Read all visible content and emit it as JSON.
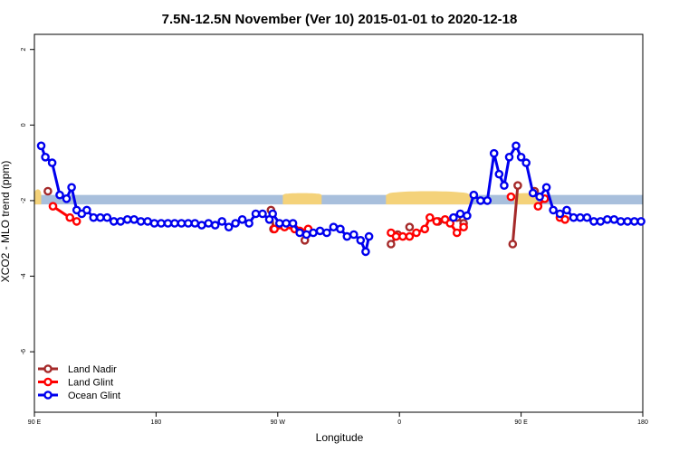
{
  "chart_data": {
    "type": "line",
    "title": "7.5N-12.5N November (Ver 10)   2015-01-01 to 2020-12-18",
    "xlabel": "Longitude",
    "ylabel": "XCO2 - MLO trend (ppm)",
    "xlim": [
      90,
      450
    ],
    "ylim": [
      -7.6,
      2.4
    ],
    "x_ticks": [
      {
        "value": 90,
        "label": "90 E"
      },
      {
        "value": 162,
        "label": "180"
      },
      {
        "value": 234,
        "label": "90 W"
      },
      {
        "value": 306,
        "label": "0"
      },
      {
        "value": 378,
        "label": "90 E"
      },
      {
        "value": 450,
        "label": "180"
      }
    ],
    "y_ticks": [
      {
        "value": 2,
        "label": "2"
      },
      {
        "value": 0,
        "label": "0"
      },
      {
        "value": -2,
        "label": "-2"
      },
      {
        "value": -4,
        "label": "-4"
      },
      {
        "value": -6,
        "label": "-6"
      }
    ],
    "colors": {
      "land_nadir": "#a52a2a",
      "land_glint": "#ff0000",
      "ocean_glint": "#0000ee",
      "surface_band": "#a8bfdc",
      "land_band": "#f4d27a"
    },
    "surface_band": {
      "y_top": -1.85,
      "y_bottom": -2.1
    },
    "land_regions": [
      {
        "x_start": 90,
        "x_end": 94,
        "peak": -1.7
      },
      {
        "x_start": 237,
        "x_end": 260,
        "peak": -1.8
      },
      {
        "x_start": 298,
        "x_end": 348,
        "peak": -1.75
      },
      {
        "x_start": 374,
        "x_end": 388,
        "peak": -1.8
      }
    ],
    "legend": [
      "Land Nadir",
      "Land Glint",
      "Ocean Glint"
    ],
    "legend_position": "bottom-left",
    "series": [
      {
        "name": "Land Nadir",
        "color_key": "land_nadir",
        "segments": [
          [
            [
              98,
              -1.75
            ]
          ],
          [
            [
              230,
              -2.25
            ],
            [
              231.5,
              -2.75
            ]
          ],
          [
            [
              250,
              -3.05
            ]
          ],
          [
            [
              301,
              -3.15
            ],
            [
              305,
              -2.9
            ]
          ],
          [
            [
              312,
              -2.7
            ]
          ],
          [
            [
              329,
              -2.55
            ]
          ],
          [
            [
              340,
              -2.45
            ],
            [
              344,
              -2.6
            ]
          ],
          [
            [
              373,
              -3.15
            ],
            [
              376,
              -1.6
            ]
          ],
          [
            [
              386,
              -1.75
            ]
          ]
        ]
      },
      {
        "name": "Land Glint",
        "color_key": "land_glint",
        "segments": [
          [
            [
              101,
              -2.15
            ],
            [
              111,
              -2.45
            ],
            [
              115,
              -2.55
            ]
          ],
          [
            [
              232,
              -2.75
            ],
            [
              238,
              -2.7
            ],
            [
              244,
              -2.75
            ],
            [
              247,
              -2.8
            ],
            [
              252,
              -2.75
            ]
          ],
          [
            [
              301,
              -2.85
            ],
            [
              304,
              -2.95
            ],
            [
              308,
              -2.95
            ],
            [
              312,
              -2.95
            ],
            [
              316,
              -2.85
            ],
            [
              321,
              -2.75
            ],
            [
              324,
              -2.45
            ],
            [
              328,
              -2.55
            ],
            [
              333,
              -2.5
            ],
            [
              336,
              -2.6
            ],
            [
              340,
              -2.85
            ],
            [
              344,
              -2.7
            ]
          ],
          [
            [
              372,
              -1.9
            ]
          ],
          [
            [
              388,
              -2.15
            ],
            [
              392,
              -1.95
            ]
          ],
          [
            [
              401,
              -2.45
            ],
            [
              404,
              -2.5
            ]
          ]
        ]
      },
      {
        "name": "Ocean Glint",
        "color_key": "ocean_glint",
        "segments": [
          [
            [
              94,
              -0.55
            ],
            [
              96.5,
              -0.85
            ],
            [
              100.5,
              -1.0
            ],
            [
              105,
              -1.85
            ],
            [
              109,
              -1.95
            ],
            [
              112,
              -1.65
            ],
            [
              115,
              -2.25
            ],
            [
              118,
              -2.35
            ],
            [
              121,
              -2.25
            ],
            [
              125,
              -2.45
            ],
            [
              129,
              -2.45
            ],
            [
              133,
              -2.45
            ],
            [
              137,
              -2.55
            ],
            [
              141,
              -2.55
            ],
            [
              145,
              -2.5
            ],
            [
              149,
              -2.5
            ],
            [
              153,
              -2.55
            ],
            [
              157,
              -2.55
            ],
            [
              161,
              -2.6
            ],
            [
              165,
              -2.6
            ],
            [
              169,
              -2.6
            ],
            [
              173,
              -2.6
            ],
            [
              177,
              -2.6
            ],
            [
              181,
              -2.6
            ],
            [
              185,
              -2.6
            ],
            [
              189,
              -2.65
            ],
            [
              193,
              -2.6
            ],
            [
              197,
              -2.65
            ],
            [
              201,
              -2.55
            ],
            [
              205,
              -2.7
            ],
            [
              209,
              -2.6
            ],
            [
              213,
              -2.5
            ],
            [
              217,
              -2.6
            ],
            [
              221,
              -2.35
            ],
            [
              225,
              -2.35
            ],
            [
              229,
              -2.5
            ],
            [
              231,
              -2.35
            ],
            [
              235,
              -2.6
            ],
            [
              239,
              -2.6
            ],
            [
              243,
              -2.6
            ],
            [
              247,
              -2.85
            ],
            [
              251,
              -2.9
            ],
            [
              255,
              -2.85
            ],
            [
              259,
              -2.8
            ],
            [
              263,
              -2.85
            ],
            [
              267,
              -2.7
            ],
            [
              271,
              -2.75
            ],
            [
              275,
              -2.95
            ],
            [
              279,
              -2.9
            ],
            [
              283,
              -3.05
            ],
            [
              286,
              -3.35
            ],
            [
              288,
              -2.95
            ]
          ],
          [
            [
              338,
              -2.45
            ],
            [
              342,
              -2.35
            ],
            [
              346,
              -2.4
            ],
            [
              350,
              -1.85
            ],
            [
              354,
              -2.0
            ],
            [
              358,
              -2.0
            ],
            [
              362,
              -0.75
            ],
            [
              365,
              -1.3
            ],
            [
              368,
              -1.6
            ],
            [
              371,
              -0.85
            ],
            [
              375,
              -0.55
            ],
            [
              378,
              -0.85
            ],
            [
              381,
              -1.0
            ],
            [
              385,
              -1.8
            ],
            [
              389,
              -1.9
            ],
            [
              393,
              -1.65
            ],
            [
              397,
              -2.25
            ],
            [
              401,
              -2.35
            ],
            [
              405,
              -2.25
            ],
            [
              409,
              -2.45
            ],
            [
              413,
              -2.45
            ],
            [
              417,
              -2.45
            ],
            [
              421,
              -2.55
            ],
            [
              425,
              -2.55
            ],
            [
              429,
              -2.5
            ],
            [
              433,
              -2.5
            ],
            [
              437,
              -2.55
            ],
            [
              441,
              -2.55
            ],
            [
              445,
              -2.55
            ],
            [
              449,
              -2.55
            ]
          ]
        ]
      }
    ]
  }
}
